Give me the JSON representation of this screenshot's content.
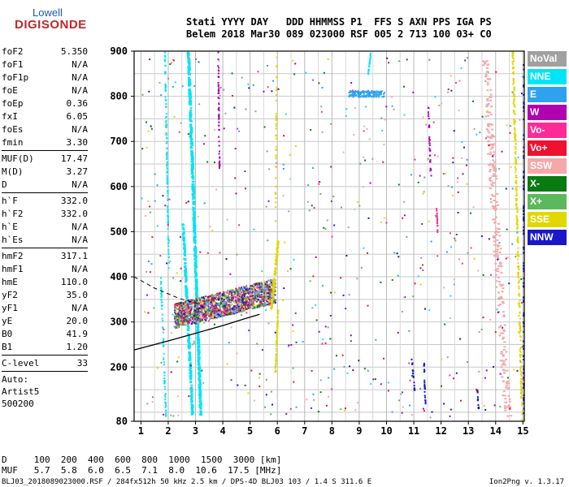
{
  "logo": {
    "top": "Lowell",
    "bottom": "DIGISONDE"
  },
  "header": {
    "line1": "Stati YYYY DAY   DDD HHMMSS P1  FFS S AXN PPS IGA PS",
    "line2": "Belem 2018 Mar30 089 023000 RSF 005 2 713 100 03+ C0"
  },
  "params": [
    {
      "name": "foF2",
      "value": "5.350"
    },
    {
      "name": "foF1",
      "value": "N/A"
    },
    {
      "name": "foF1p",
      "value": "N/A"
    },
    {
      "name": "foE",
      "value": "N/A"
    },
    {
      "name": "foEp",
      "value": "0.36"
    },
    {
      "name": "fxI",
      "value": "6.05"
    },
    {
      "name": "foEs",
      "value": "N/A"
    },
    {
      "name": "fmin",
      "value": "3.30"
    },
    {
      "sep": true
    },
    {
      "name": "MUF(D)",
      "value": "17.47"
    },
    {
      "name": "M(D)",
      "value": "3.27"
    },
    {
      "name": "D",
      "value": "N/A"
    },
    {
      "sep": true
    },
    {
      "name": "h`F",
      "value": "332.0"
    },
    {
      "name": "h`F2",
      "value": "332.0"
    },
    {
      "name": "h`E",
      "value": "N/A"
    },
    {
      "name": "h`Es",
      "value": "N/A"
    },
    {
      "sep": true
    },
    {
      "name": "hmF2",
      "value": "317.1"
    },
    {
      "name": "hmF1",
      "value": "N/A"
    },
    {
      "name": "hmE",
      "value": "110.0"
    },
    {
      "name": "yF2",
      "value": "35.0"
    },
    {
      "name": "yF1",
      "value": "N/A"
    },
    {
      "name": "yE",
      "value": "20.0"
    },
    {
      "name": "B0",
      "value": "41.9"
    },
    {
      "name": "B1",
      "value": "1.20"
    },
    {
      "sep": true
    },
    {
      "name": "C-level",
      "value": "33"
    },
    {
      "sep": true
    }
  ],
  "auto": [
    "Auto:",
    "Artist5",
    "500200"
  ],
  "legend": [
    {
      "label": "NoVal",
      "color": "#a0a0a0"
    },
    {
      "label": "NNE",
      "color": "#00e5f5"
    },
    {
      "label": "E",
      "color": "#2fa2ef"
    },
    {
      "label": "W",
      "color": "#b000b0"
    },
    {
      "label": "Vo-",
      "color": "#ff2a98"
    },
    {
      "label": "Vo+",
      "color": "#f01030"
    },
    {
      "label": "SSW",
      "color": "#f4a8a8"
    },
    {
      "label": "X-",
      "color": "#0a7a12"
    },
    {
      "label": "X+",
      "color": "#5cb85c"
    },
    {
      "label": "SSE",
      "color": "#e0d800"
    },
    {
      "label": "NNW",
      "color": "#1818c8"
    }
  ],
  "chart_data": {
    "type": "scatter",
    "x_ticks": [
      "1",
      "2",
      "3",
      "4",
      "5",
      "6",
      "7",
      "8",
      "9",
      "10",
      "11",
      "12",
      "13",
      "14",
      "15"
    ],
    "y_ticks": [
      "80",
      "200",
      "300",
      "400",
      "500",
      "600",
      "700",
      "800",
      "900"
    ],
    "xlim": [
      0.75,
      15.05
    ],
    "ylim": [
      80,
      900
    ],
    "grid": true,
    "trace_profile": [
      [
        0.75,
        238
      ],
      [
        2.0,
        258
      ],
      [
        3.0,
        275
      ],
      [
        4.0,
        292
      ],
      [
        4.8,
        307
      ],
      [
        5.35,
        317
      ]
    ],
    "trace_profile_dashed": [
      [
        0.75,
        400
      ],
      [
        1.5,
        375
      ],
      [
        2.4,
        352
      ],
      [
        3.0,
        342
      ],
      [
        3.4,
        330
      ]
    ],
    "series": [
      {
        "name": "NNE",
        "color": "#00e5f5"
      },
      {
        "name": "E",
        "color": "#2fa2ef"
      },
      {
        "name": "W",
        "color": "#b000b0"
      },
      {
        "name": "Vo-",
        "color": "#ff2a98"
      },
      {
        "name": "Vo+",
        "color": "#f01030"
      },
      {
        "name": "SSW",
        "color": "#f4a8a8"
      },
      {
        "name": "X-",
        "color": "#0a7a12"
      },
      {
        "name": "X+",
        "color": "#5cb85c"
      },
      {
        "name": "SSE",
        "color": "#e0d800"
      },
      {
        "name": "NNW",
        "color": "#1818c8"
      },
      {
        "name": "NoVal",
        "color": "#a0a0a0"
      }
    ]
  },
  "footer": {
    "line1": "D     100  200  400  600  800  1000  1500  3000 [km]",
    "line2": "MUF   5.7  5.8  6.0  6.5  7.1  8.0  10.6  17.5 [MHz]",
    "bottom_left": "BLJ03_2018089023000.RSF / 284fx512h 50 kHz 2.5 km / DPS-4D BLJ03 103 / 1.4 S 311.6 E",
    "bottom_right": "Ion2Png v. 1.3.17"
  }
}
